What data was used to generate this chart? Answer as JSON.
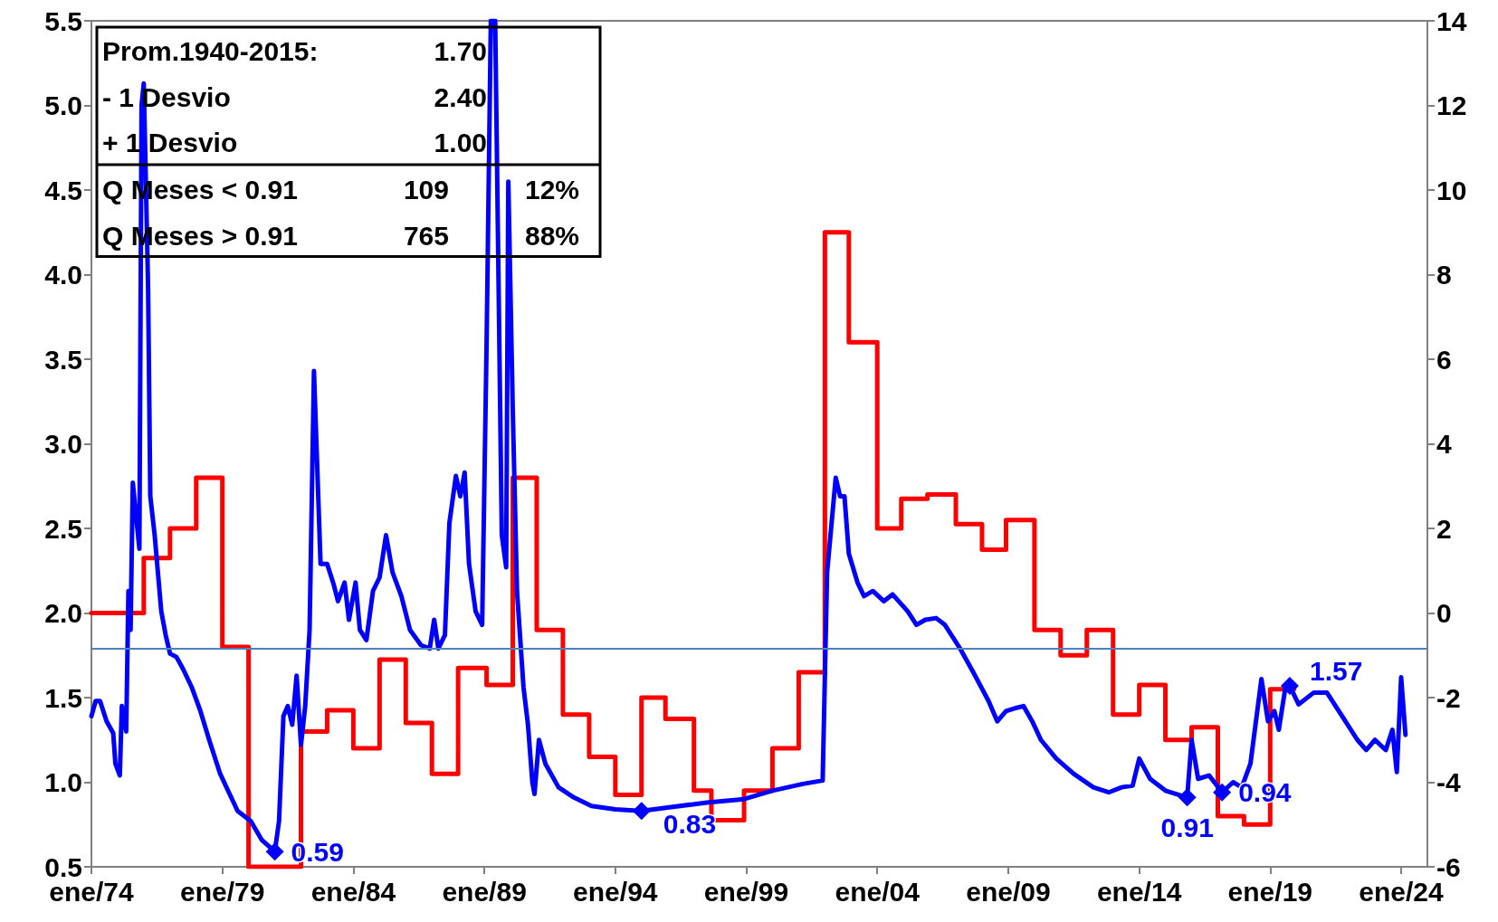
{
  "chart_data": {
    "type": "line",
    "xlim": [
      "1974-01",
      "2025-01"
    ],
    "xticks": [
      {
        "value": "1974-01",
        "label": "ene/74"
      },
      {
        "value": "1979-01",
        "label": "ene/79"
      },
      {
        "value": "1984-01",
        "label": "ene/84"
      },
      {
        "value": "1989-01",
        "label": "ene/89"
      },
      {
        "value": "1994-01",
        "label": "ene/94"
      },
      {
        "value": "1999-01",
        "label": "ene/99"
      },
      {
        "value": "2004-01",
        "label": "ene/04"
      },
      {
        "value": "2009-01",
        "label": "ene/09"
      },
      {
        "value": "2014-01",
        "label": "ene/14"
      },
      {
        "value": "2019-01",
        "label": "ene/19"
      },
      {
        "value": "2024-01",
        "label": "ene/24"
      }
    ],
    "ylim": [
      0.5,
      5.5
    ],
    "yticks": [
      {
        "value": 0.5,
        "label": "0.5"
      },
      {
        "value": 1,
        "label": "1.0"
      },
      {
        "value": 1.5,
        "label": "1.5"
      },
      {
        "value": 2,
        "label": "2.0"
      },
      {
        "value": 2.5,
        "label": "2.5"
      },
      {
        "value": 3,
        "label": "3.0"
      },
      {
        "value": 3.5,
        "label": "3.5"
      },
      {
        "value": 4,
        "label": "4.0"
      },
      {
        "value": 4.5,
        "label": "4.5"
      },
      {
        "value": 5,
        "label": "5.0"
      },
      {
        "value": 5.5,
        "label": "5.5"
      }
    ],
    "y2lim": [
      -6,
      14
    ],
    "y2ticks": [
      -6,
      -4,
      -2,
      0,
      2,
      4,
      6,
      8,
      10,
      12,
      14
    ],
    "grid": false,
    "marker": "none",
    "line_style": "solid",
    "series": [
      {
        "color": "#0000ff",
        "x": [
          "1974-01",
          "1974-03",
          "1974-05",
          "1974-08",
          "1974-11",
          "1974-12",
          "1975-02",
          "1975-03",
          "1975-05",
          "1975-06",
          "1975-07",
          "1975-08",
          "1975-11",
          "1975-12",
          "1976-01",
          "1976-03",
          "1976-04",
          "1976-06",
          "1976-09",
          "1976-11",
          "1977-01",
          "1977-04",
          "1977-07",
          "1977-11",
          "1978-03",
          "1978-07",
          "1978-12",
          "1979-04",
          "1979-08",
          "1980-02",
          "1980-07",
          "1981-01",
          "1981-03",
          "1981-05",
          "1981-07",
          "1981-09",
          "1981-11",
          "1982-01",
          "1982-03",
          "1982-05",
          "1982-07",
          "1982-10",
          "1983-01",
          "1983-04",
          "1983-06",
          "1983-09",
          "1983-11",
          "1984-02",
          "1984-04",
          "1984-07",
          "1984-10",
          "1985-01",
          "1985-04",
          "1985-07",
          "1985-11",
          "1986-03",
          "1986-08",
          "1986-12",
          "1987-02",
          "1987-04",
          "1987-07",
          "1987-09",
          "1987-12",
          "1988-02",
          "1988-04",
          "1988-06",
          "1988-09",
          "1988-12",
          "1989-02",
          "1989-04",
          "1989-06",
          "1989-09",
          "1989-11",
          "1989-12",
          "1990-02",
          "1990-04",
          "1990-07",
          "1990-09",
          "1990-11",
          "1990-12",
          "1991-02",
          "1991-05",
          "1991-11",
          "1992-06",
          "1993-02",
          "1994-01",
          "1995-01",
          "1996-01",
          "1997-07",
          "1998-12",
          "2000-01",
          "2001-03",
          "2001-12",
          "2002-02",
          "2002-06",
          "2002-08",
          "2002-10",
          "2002-12",
          "2003-04",
          "2003-07",
          "2003-11",
          "2004-04",
          "2004-08",
          "2005-03",
          "2005-07",
          "2005-11",
          "2006-04",
          "2006-08",
          "2007-03",
          "2007-09",
          "2008-04",
          "2008-08",
          "2008-12",
          "2009-05",
          "2009-08",
          "2009-12",
          "2010-04",
          "2010-11",
          "2011-07",
          "2012-04",
          "2012-11",
          "2013-05",
          "2013-10",
          "2014-01",
          "2014-06",
          "2015-01",
          "2015-11",
          "2016-01",
          "2016-04",
          "2016-09",
          "2017-03",
          "2017-08",
          "2017-12",
          "2018-04",
          "2018-09",
          "2018-12",
          "2019-03",
          "2019-05",
          "2019-08",
          "2019-10",
          "2020-02",
          "2020-09",
          "2021-03",
          "2021-10",
          "2022-05",
          "2022-09",
          "2023-01",
          "2023-06",
          "2023-09",
          "2023-11",
          "2024-01",
          "2024-03"
        ],
        "values": [
          1.39,
          1.48,
          1.48,
          1.36,
          1.29,
          1.11,
          1.04,
          1.45,
          1.3,
          2.13,
          1.9,
          2.77,
          2.38,
          5.0,
          5.13,
          3.93,
          2.69,
          2.46,
          2.01,
          1.87,
          1.76,
          1.74,
          1.67,
          1.56,
          1.42,
          1.25,
          1.05,
          0.94,
          0.83,
          0.77,
          0.66,
          0.59,
          0.77,
          1.39,
          1.45,
          1.34,
          1.63,
          1.22,
          1.45,
          1.9,
          3.43,
          2.29,
          2.29,
          2.17,
          2.07,
          2.18,
          1.96,
          2.18,
          1.9,
          1.84,
          2.13,
          2.21,
          2.46,
          2.24,
          2.1,
          1.9,
          1.81,
          1.79,
          1.96,
          1.79,
          1.87,
          2.53,
          2.81,
          2.69,
          2.83,
          2.29,
          2.01,
          1.93,
          3.59,
          5.5,
          5.5,
          2.46,
          2.27,
          4.55,
          3.2,
          2.13,
          1.56,
          1.34,
          1.0,
          0.93,
          1.25,
          1.11,
          0.97,
          0.91,
          0.86,
          0.84,
          0.83,
          0.85,
          0.88,
          0.9,
          0.95,
          0.99,
          1.01,
          2.24,
          2.8,
          2.69,
          2.69,
          2.35,
          2.18,
          2.1,
          2.13,
          2.07,
          2.11,
          2.01,
          1.93,
          1.96,
          1.97,
          1.93,
          1.79,
          1.65,
          1.48,
          1.36,
          1.42,
          1.44,
          1.45,
          1.36,
          1.25,
          1.14,
          1.05,
          0.97,
          0.94,
          0.97,
          0.98,
          1.14,
          1.02,
          0.95,
          0.91,
          1.25,
          1.02,
          1.04,
          0.94,
          1.0,
          0.97,
          1.11,
          1.61,
          1.36,
          1.42,
          1.31,
          1.56,
          1.57,
          1.46,
          1.53,
          1.53,
          1.39,
          1.25,
          1.19,
          1.25,
          1.19,
          1.31,
          1.06,
          1.62,
          1.28
        ]
      },
      {
        "type": "step",
        "axis": "y2",
        "color": "#ff0000",
        "x": [
          "1974-01",
          "1976-01",
          "1977-01",
          "1978-01",
          "1979-01",
          "1980-01",
          "1982-01",
          "1983-01",
          "1984-01",
          "1985-01",
          "1986-01",
          "1987-01",
          "1988-01",
          "1989-02",
          "1990-02",
          "1991-01",
          "1992-01",
          "1993-01",
          "1994-01",
          "1995-01",
          "1995-12",
          "1997-01",
          "1997-09",
          "1998-12",
          "2000-01",
          "2001-01",
          "2002-01",
          "2002-12",
          "2004-01",
          "2004-12",
          "2005-12",
          "2007-01",
          "2008-01",
          "2008-12",
          "2010-01",
          "2011-01",
          "2012-01",
          "2013-01",
          "2014-01",
          "2015-01",
          "2016-01",
          "2017-01",
          "2018-01",
          "2019-01",
          "2019-12"
        ],
        "values": [
          0.0,
          1.3,
          2.0,
          3.2,
          -0.8,
          -6.0,
          -2.8,
          -2.3,
          -3.2,
          -1.1,
          -2.6,
          -3.8,
          -1.3,
          -1.7,
          3.2,
          -0.4,
          -2.4,
          -3.4,
          -4.3,
          -2.0,
          -2.5,
          -4.2,
          -4.9,
          -4.2,
          -3.2,
          -1.4,
          9.0,
          6.4,
          2.0,
          2.7,
          2.8,
          2.1,
          1.5,
          2.2,
          -0.4,
          -1.0,
          -0.4,
          -2.4,
          -1.7,
          -3.0,
          -2.7,
          -4.8,
          -5.0,
          -1.8,
          -1.8
        ]
      }
    ],
    "ref_lines": [
      {
        "axis": "y",
        "value": 1.79,
        "color": "#4f81bd",
        "line_style": "solid"
      }
    ],
    "annotations": [
      "Prom.1940-2015:",
      "1.70",
      "- 1 Desvio",
      "2.40",
      "+ 1 Desvio",
      "1.00",
      "Q Meses < 0.91",
      "109",
      "12%",
      "Q Meses > 0.91",
      "765",
      "88%",
      {
        "text": "0.59",
        "x": "1981-01",
        "y": 0.59
      },
      {
        "text": "0.83",
        "x": "1995-01",
        "y": 0.83
      },
      {
        "text": "0.91",
        "x": "2015-11",
        "y": 0.91
      },
      {
        "text": "0.94",
        "x": "2017-03",
        "y": 0.94
      },
      {
        "text": "1.57",
        "x": "2019-10",
        "y": 1.57
      }
    ]
  }
}
